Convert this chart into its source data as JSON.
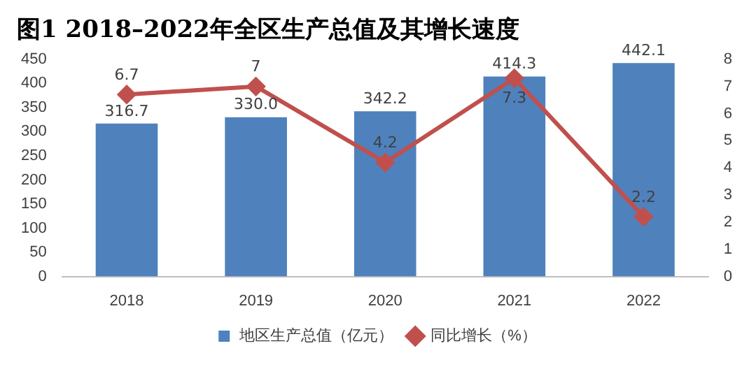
{
  "chart_data": {
    "type": "bar",
    "title": "图1 2018–2022年全区生产总值及其增长速度",
    "categories": [
      "2018",
      "2019",
      "2020",
      "2021",
      "2022"
    ],
    "series": [
      {
        "name": "地区生产总值（亿元）",
        "color": "#4f81bd",
        "values": [
          316.7,
          330.0,
          342.2,
          414.3,
          442.1
        ],
        "value_labels": [
          "316.7",
          "330.0",
          "342.2",
          "414.3",
          "442.1"
        ]
      },
      {
        "name": "同比增长（%）",
        "type": "line",
        "axis": "y2",
        "color": "#c0504d",
        "values": [
          6.7,
          7,
          4.2,
          7.3,
          2.2
        ],
        "value_labels": [
          "6.7",
          "7",
          "4.2",
          "7.3",
          "2.2"
        ]
      }
    ],
    "ylim": [
      0,
      450
    ],
    "yticks": [
      0,
      50,
      100,
      150,
      200,
      250,
      300,
      350,
      400,
      450
    ],
    "y2lim": [
      0,
      8
    ],
    "y2ticks": [
      0,
      1,
      2,
      3,
      4,
      5,
      6,
      7,
      8
    ],
    "grid": false,
    "legend": "bottom",
    "marker": "diamond",
    "line_style": "solid"
  }
}
